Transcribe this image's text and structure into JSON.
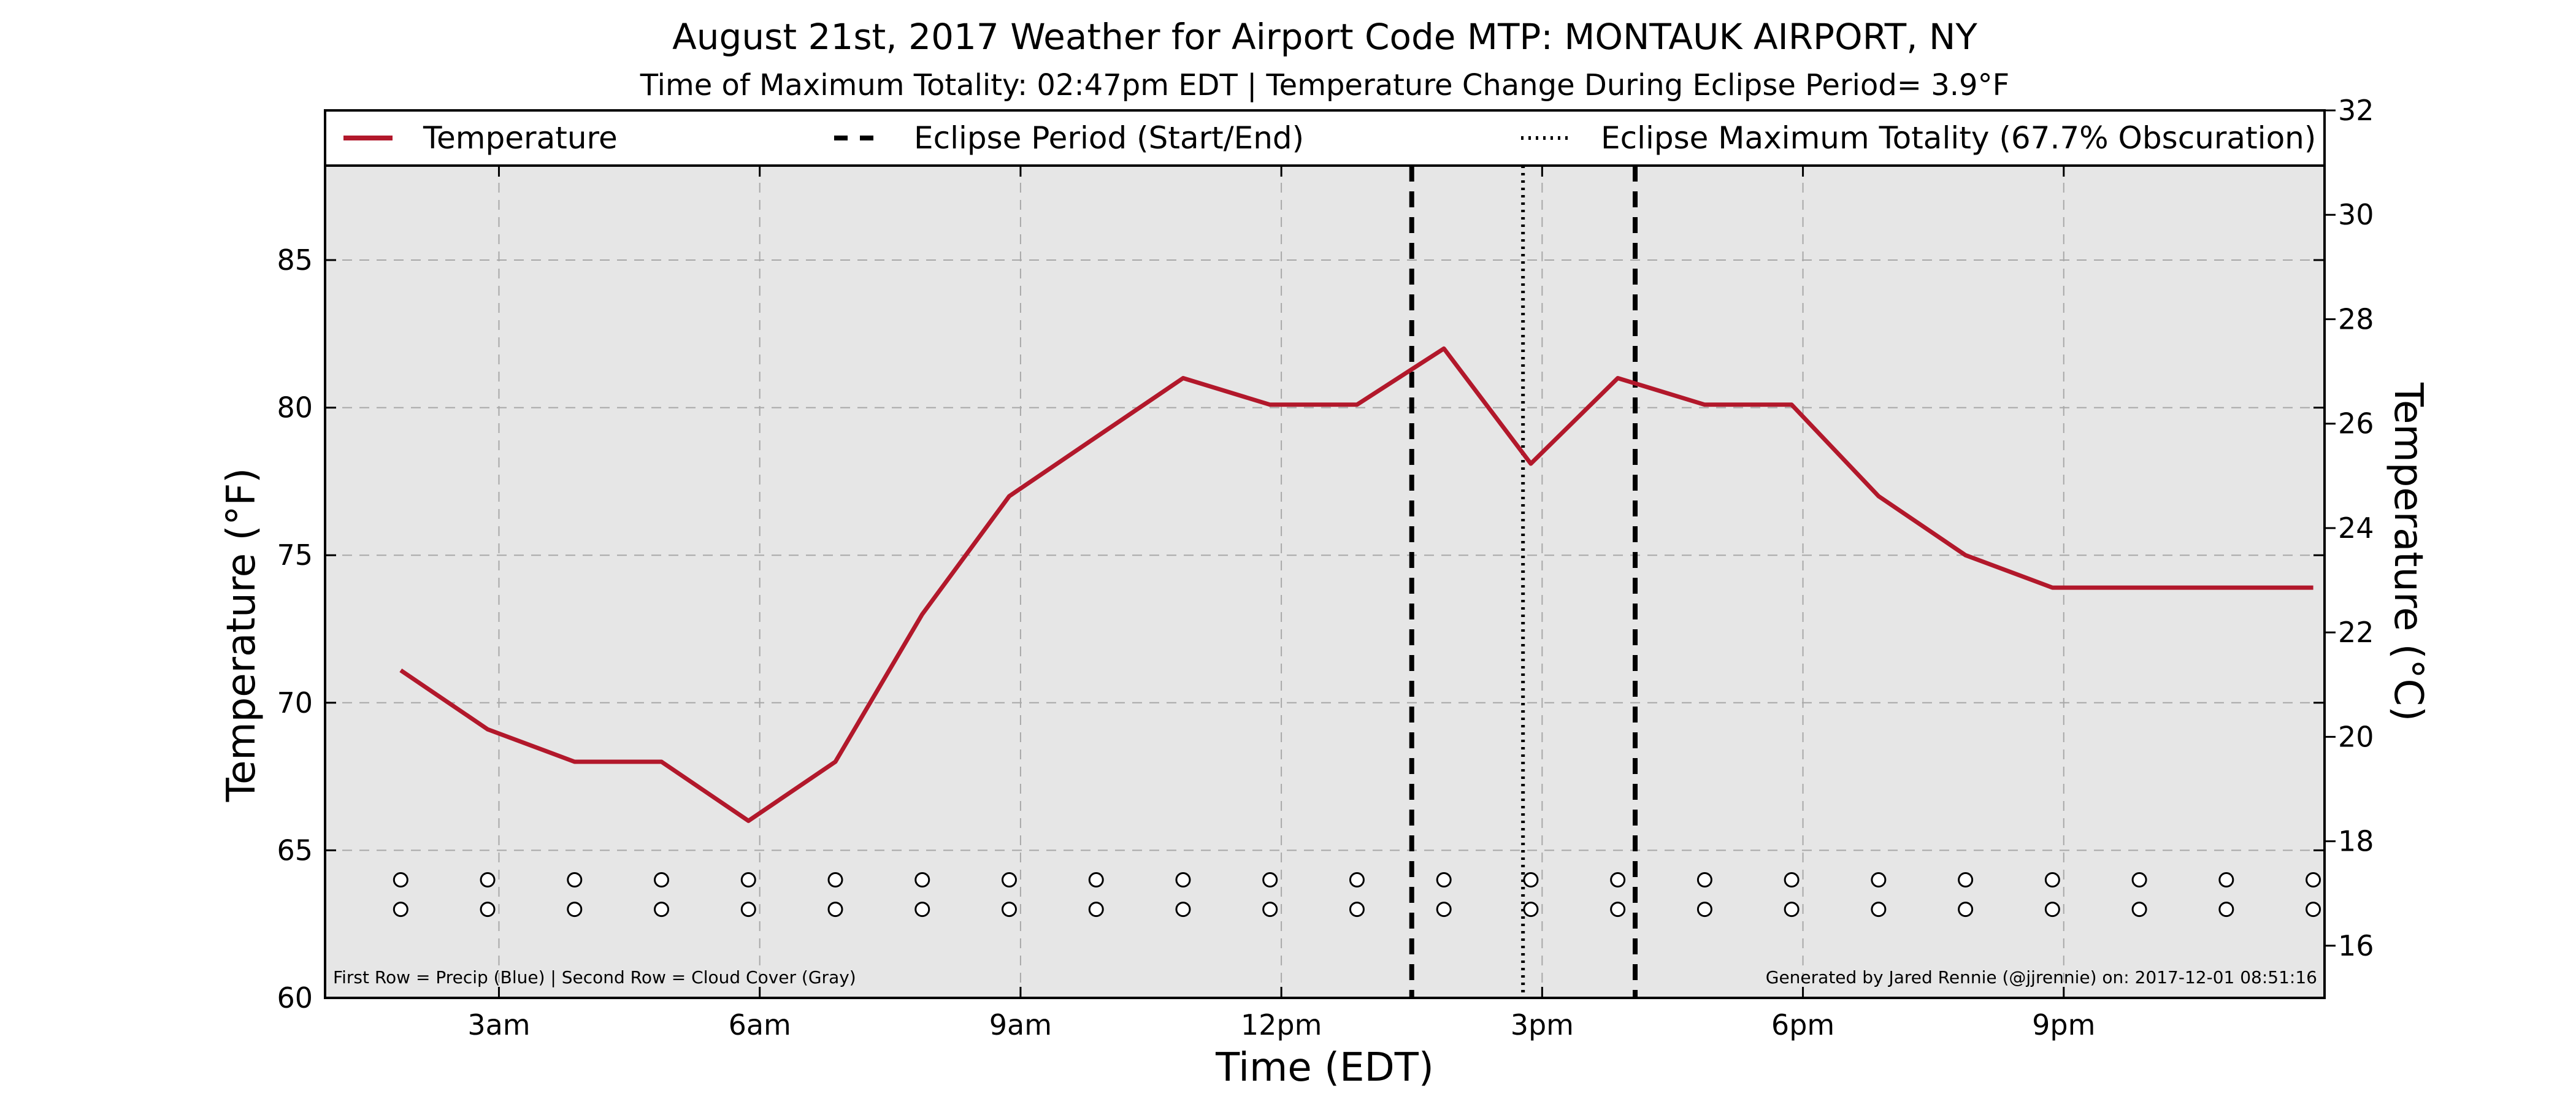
{
  "chart_data": {
    "type": "line",
    "title": "August 21st, 2017 Weather for Airport Code MTP: MONTAUK AIRPORT, NY",
    "subtitle": "Time of Maximum Totality: 02:47pm EDT | Temperature Change During Eclipse Period= 3.9°F",
    "xlabel": "Time (EDT)",
    "ylabel": "Temperature (°F)",
    "ylabel_right": "Temperature (°C)",
    "xlim": [
      1,
      24
    ],
    "ylim": [
      60,
      88.2
    ],
    "ylim_right": [
      15,
      32
    ],
    "x_ticks": [
      {
        "x": 3,
        "label": "3am"
      },
      {
        "x": 6,
        "label": "6am"
      },
      {
        "x": 9,
        "label": "9am"
      },
      {
        "x": 12,
        "label": "12pm"
      },
      {
        "x": 15,
        "label": "3pm"
      },
      {
        "x": 18,
        "label": "6pm"
      },
      {
        "x": 21,
        "label": "9pm"
      }
    ],
    "y_ticks": [
      60,
      65,
      70,
      75,
      80,
      85
    ],
    "y_ticks_right": [
      16,
      18,
      20,
      22,
      24,
      26,
      28,
      30,
      32
    ],
    "grid": true,
    "series": [
      {
        "name": "Temperature",
        "color": "#b2182b",
        "x": [
          1.87,
          2.87,
          3.87,
          4.87,
          5.87,
          6.87,
          7.87,
          8.87,
          9.87,
          10.87,
          11.87,
          12.87,
          13.87,
          14.87,
          15.87,
          16.87,
          17.87,
          18.87,
          19.87,
          20.87,
          21.87,
          22.87,
          23.87
        ],
        "y": [
          71.1,
          69.1,
          68.0,
          68.0,
          66.0,
          68.0,
          73.0,
          77.0,
          79.0,
          81.0,
          80.1,
          80.1,
          82.0,
          78.1,
          81.0,
          80.1,
          80.1,
          77.0,
          75.0,
          73.9,
          73.9,
          73.9,
          73.9
        ]
      }
    ],
    "eclipse_start": 13.5,
    "eclipse_end": 16.07,
    "eclipse_max": 14.78,
    "marker_rows": {
      "x": [
        1.87,
        2.87,
        3.87,
        4.87,
        5.87,
        6.87,
        7.87,
        8.87,
        9.87,
        10.87,
        11.87,
        12.87,
        13.87,
        14.87,
        15.87,
        16.87,
        17.87,
        18.87,
        19.87,
        20.87,
        21.87,
        22.87,
        23.87
      ],
      "row1_y": 64,
      "row2_y": 63
    },
    "legend": {
      "placement": "top",
      "items": [
        {
          "label": "Temperature",
          "style": "solid",
          "color": "#b2182b"
        },
        {
          "label": "Eclipse Period (Start/End)",
          "style": "dashed",
          "color": "#000000"
        },
        {
          "label": "Eclipse Maximum Totality (67.7% Obscuration)",
          "style": "dotted",
          "color": "#000000"
        }
      ]
    },
    "footnote_left": "First Row = Precip (Blue) | Second Row = Cloud Cover (Gray)",
    "footnote_right": "Generated by Jared Rennie (@jjrennie) on: 2017-12-01 08:51:16",
    "plot_background": "#e6e6e6"
  }
}
